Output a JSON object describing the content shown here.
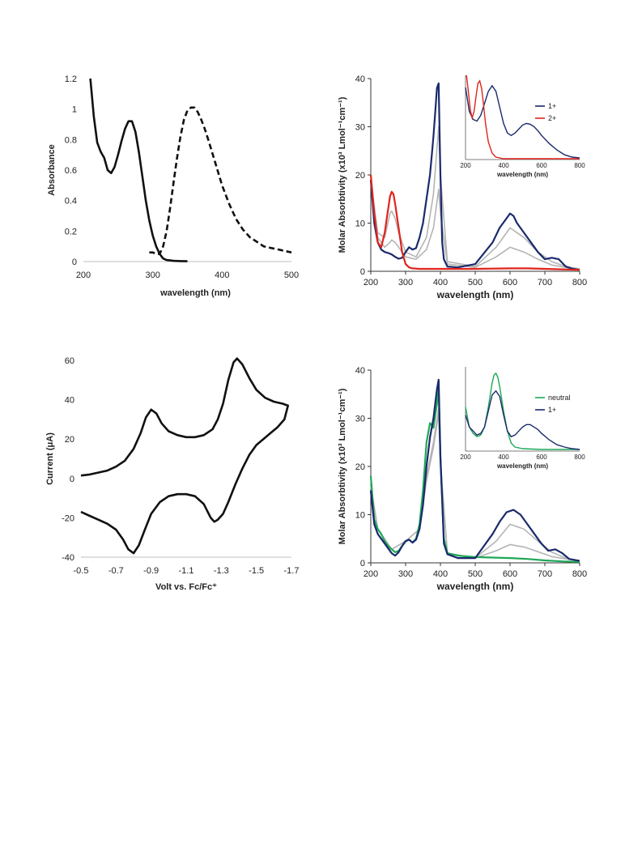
{
  "chart_data": [
    {
      "type": "line",
      "xlabel": "wavelength (nm)",
      "ylabel": "Absorbance",
      "xlim": [
        200,
        500
      ],
      "ylim": [
        0,
        1.2
      ],
      "xticks": [
        "200",
        "300",
        "400",
        "500"
      ],
      "yticks": [
        "0",
        "0.2",
        "0.4",
        "0.6",
        "0.8",
        "1",
        "1.2"
      ],
      "grid": false,
      "series": [
        {
          "style": "solid",
          "color": "#111111",
          "x": [
            210,
            215,
            220,
            225,
            230,
            235,
            240,
            245,
            250,
            255,
            260,
            265,
            270,
            275,
            280,
            285,
            290,
            295,
            300,
            305,
            310,
            315,
            320,
            330,
            340,
            350
          ],
          "y": [
            1.2,
            0.95,
            0.78,
            0.72,
            0.68,
            0.6,
            0.58,
            0.62,
            0.7,
            0.79,
            0.87,
            0.92,
            0.92,
            0.85,
            0.72,
            0.56,
            0.4,
            0.27,
            0.17,
            0.1,
            0.05,
            0.02,
            0.01,
            0.005,
            0.003,
            0.002
          ]
        },
        {
          "style": "dashed",
          "color": "#111111",
          "x": [
            295,
            300,
            305,
            310,
            315,
            320,
            325,
            330,
            335,
            340,
            345,
            350,
            355,
            360,
            365,
            370,
            375,
            380,
            390,
            400,
            410,
            420,
            430,
            440,
            450,
            460,
            470,
            480,
            490,
            500
          ],
          "y": [
            0.06,
            0.06,
            0.05,
            0.05,
            0.1,
            0.2,
            0.35,
            0.52,
            0.68,
            0.82,
            0.93,
            0.99,
            1.01,
            1.01,
            0.98,
            0.93,
            0.87,
            0.8,
            0.65,
            0.5,
            0.38,
            0.28,
            0.21,
            0.16,
            0.13,
            0.1,
            0.09,
            0.08,
            0.07,
            0.06
          ]
        }
      ]
    },
    {
      "type": "line",
      "xlabel": "wavelength (nm)",
      "ylabel": "Molar Absorbtivity (x10³ Lmol⁻¹cm⁻¹)",
      "xlim": [
        200,
        800
      ],
      "ylim": [
        0,
        40
      ],
      "xticks": [
        "200",
        "300",
        "400",
        "500",
        "600",
        "700",
        "800"
      ],
      "yticks": [
        "0",
        "10",
        "20",
        "30",
        "40"
      ],
      "grid": false,
      "series": [
        {
          "name": "1+",
          "color": "#1a2a6c",
          "x": [
            200,
            210,
            220,
            230,
            240,
            250,
            260,
            270,
            280,
            290,
            300,
            310,
            320,
            330,
            340,
            350,
            360,
            370,
            375,
            380,
            385,
            390,
            395,
            400,
            405,
            410,
            420,
            450,
            500,
            550,
            570,
            590,
            600,
            610,
            620,
            640,
            660,
            680,
            700,
            720,
            740,
            760,
            780,
            800
          ],
          "y": [
            19,
            10,
            6,
            4.5,
            4,
            3.8,
            3.5,
            3,
            2.6,
            2.8,
            4,
            5,
            4.5,
            4.8,
            7,
            10,
            15,
            20,
            24,
            28,
            33,
            38,
            39,
            20,
            6,
            2.5,
            1,
            0.8,
            1.5,
            6,
            9,
            11,
            12,
            11.5,
            10,
            8,
            6,
            4,
            2.5,
            2.8,
            2.5,
            1,
            0.5,
            0.3
          ]
        },
        {
          "name": "2+",
          "color": "#e0241c",
          "x": [
            200,
            210,
            220,
            230,
            240,
            250,
            255,
            260,
            265,
            270,
            280,
            290,
            300,
            310,
            320,
            340,
            400,
            500,
            600,
            650,
            700,
            750,
            800
          ],
          "y": [
            20,
            12,
            6,
            5,
            8,
            13,
            15.5,
            16.5,
            16,
            14,
            9,
            4,
            1.5,
            0.8,
            0.6,
            0.5,
            0.5,
            0.5,
            0.6,
            0.6,
            0.5,
            0.4,
            0.3
          ]
        },
        {
          "name": "",
          "color": "#b4b4b4",
          "x": [
            200,
            220,
            240,
            255,
            260,
            270,
            280,
            300,
            330,
            360,
            380,
            395,
            400,
            420,
            500,
            560,
            600,
            640,
            680,
            720,
            760,
            800
          ],
          "y": [
            19,
            8,
            7,
            12,
            12.5,
            11,
            8,
            4,
            3,
            7,
            16,
            30,
            20,
            2,
            1,
            5,
            9,
            7,
            4,
            2,
            1,
            0.5
          ]
        },
        {
          "name": "",
          "color": "#b4b4b4",
          "x": [
            200,
            220,
            240,
            255,
            260,
            270,
            280,
            300,
            330,
            360,
            380,
            395,
            400,
            420,
            500,
            560,
            600,
            640,
            680,
            720,
            760,
            800
          ],
          "y": [
            19,
            7,
            5,
            6,
            6.5,
            6,
            5,
            3,
            2.5,
            4.5,
            9,
            17,
            12,
            1.5,
            0.8,
            3,
            5,
            4,
            2.5,
            1.3,
            0.8,
            0.4
          ]
        }
      ],
      "inset": {
        "xlabel": "wavelength (nm)",
        "xlim": [
          200,
          800
        ],
        "xticks": [
          "200",
          "400",
          "600",
          "800"
        ],
        "legend": [
          "1+",
          "2+"
        ],
        "series": [
          {
            "name": "1+",
            "color": "#1a2a6c",
            "x": [
              200,
              220,
              240,
              260,
              280,
              300,
              320,
              340,
              360,
              380,
              400,
              420,
              440,
              460,
              480,
              500,
              520,
              540,
              560,
              580,
              600,
              640,
              680,
              720,
              760,
              800
            ],
            "y": [
              0.9,
              0.6,
              0.5,
              0.48,
              0.55,
              0.7,
              0.85,
              0.92,
              0.85,
              0.65,
              0.45,
              0.33,
              0.3,
              0.33,
              0.38,
              0.43,
              0.45,
              0.44,
              0.41,
              0.36,
              0.3,
              0.2,
              0.12,
              0.06,
              0.03,
              0.02
            ]
          },
          {
            "name": "2+",
            "color": "#e0241c",
            "x": [
              205,
              215,
              225,
              235,
              245,
              255,
              265,
              275,
              285,
              295,
              305,
              320,
              340,
              360,
              400,
              500,
              600,
              700,
              800
            ],
            "y": [
              1.05,
              0.85,
              0.62,
              0.52,
              0.6,
              0.78,
              0.95,
              0.98,
              0.88,
              0.68,
              0.45,
              0.22,
              0.08,
              0.03,
              0.01,
              0.01,
              0.01,
              0.01,
              0.01
            ]
          }
        ]
      }
    },
    {
      "type": "line",
      "xlabel": "Volt vs. Fc/Fc⁺",
      "ylabel": "Current (μA)",
      "xlim": [
        -0.5,
        -1.7
      ],
      "ylim": [
        -40,
        60
      ],
      "xticks": [
        "-0.5",
        "-0.7",
        "-0.9",
        "-1.1",
        "-1.3",
        "-1.5",
        "-1.7"
      ],
      "yticks": [
        "-40",
        "-20",
        "0",
        "20",
        "40",
        "60"
      ],
      "grid": false,
      "series": [
        {
          "name": "",
          "color": "#111111",
          "x": [
            -0.5,
            -0.55,
            -0.6,
            -0.65,
            -0.7,
            -0.75,
            -0.8,
            -0.84,
            -0.87,
            -0.9,
            -0.93,
            -0.96,
            -1.0,
            -1.05,
            -1.1,
            -1.15,
            -1.2,
            -1.25,
            -1.28,
            -1.31,
            -1.34,
            -1.37,
            -1.39,
            -1.42,
            -1.46,
            -1.5,
            -1.55,
            -1.6,
            -1.65,
            -1.68,
            -1.66,
            -1.62,
            -1.58,
            -1.54,
            -1.5,
            -1.46,
            -1.42,
            -1.38,
            -1.34,
            -1.31,
            -1.28,
            -1.26,
            -1.24,
            -1.2,
            -1.15,
            -1.1,
            -1.05,
            -1.0,
            -0.95,
            -0.9,
            -0.86,
            -0.83,
            -0.8,
            -0.77,
            -0.74,
            -0.7,
            -0.65,
            -0.6,
            -0.55,
            -0.5
          ],
          "y": [
            1.5,
            2,
            3,
            4,
            6,
            9,
            15,
            23,
            31,
            35,
            33,
            28,
            24,
            22,
            21,
            21,
            22,
            25,
            30,
            38,
            50,
            59,
            61,
            58,
            51,
            45,
            41,
            39,
            38,
            37,
            30,
            26,
            23,
            20,
            17,
            12,
            5,
            -3,
            -12,
            -18,
            -21,
            -22,
            -20,
            -13,
            -9,
            -8,
            -8,
            -9,
            -12,
            -18,
            -27,
            -34,
            -38,
            -36,
            -31,
            -26,
            -23,
            -21,
            -19,
            -17
          ]
        }
      ]
    },
    {
      "type": "line",
      "xlabel": "wavelength (nm)",
      "ylabel": "Molar Absorbtivity (x10³ Lmol⁻¹cm⁻¹)",
      "xlim": [
        200,
        800
      ],
      "ylim": [
        0,
        40
      ],
      "xticks": [
        "200",
        "300",
        "400",
        "500",
        "600",
        "700",
        "800"
      ],
      "yticks": [
        "0",
        "10",
        "20",
        "30",
        "40"
      ],
      "grid": false,
      "series": [
        {
          "name": "neutral",
          "color": "#1fa857",
          "x": [
            200,
            210,
            220,
            230,
            240,
            250,
            260,
            270,
            280,
            290,
            300,
            310,
            320,
            330,
            340,
            350,
            360,
            370,
            380,
            390,
            395,
            400,
            410,
            420,
            450,
            500,
            550,
            600,
            650,
            700,
            750,
            800
          ],
          "y": [
            18,
            9,
            7,
            6,
            4.5,
            3.5,
            2.8,
            2.2,
            2.5,
            3.5,
            4.5,
            4.8,
            4.2,
            5,
            8,
            15,
            25,
            29,
            28,
            33,
            36,
            22,
            5,
            2,
            1.5,
            1.2,
            1.1,
            1,
            0.8,
            0.5,
            0.3,
            0.2
          ]
        },
        {
          "name": "1+",
          "color": "#1a2a6c",
          "x": [
            200,
            210,
            220,
            230,
            240,
            250,
            260,
            270,
            280,
            290,
            300,
            310,
            320,
            330,
            340,
            350,
            360,
            370,
            380,
            390,
            395,
            400,
            410,
            420,
            450,
            500,
            550,
            570,
            590,
            610,
            630,
            650,
            670,
            690,
            710,
            730,
            750,
            770,
            800
          ],
          "y": [
            15,
            8,
            6,
            5,
            4,
            3,
            2,
            1.5,
            2.2,
            3.5,
            4.5,
            4.8,
            4.2,
            4.8,
            7,
            12,
            20,
            26,
            30,
            36,
            38,
            22,
            4,
            1.8,
            1,
            1,
            6,
            8.5,
            10.5,
            11,
            10,
            8,
            6,
            4,
            2.5,
            2.8,
            2,
            0.8,
            0.4
          ]
        },
        {
          "name": "",
          "color": "#b4b4b4",
          "x": [
            200,
            220,
            260,
            300,
            340,
            360,
            380,
            395,
            400,
            420,
            500,
            560,
            600,
            640,
            680,
            720,
            760,
            800
          ],
          "y": [
            16,
            7,
            2.8,
            4.5,
            7,
            18,
            25,
            32,
            21,
            2,
            1,
            4.5,
            8,
            7,
            4.5,
            2.2,
            1,
            0.4
          ]
        },
        {
          "name": "",
          "color": "#b4b4b4",
          "x": [
            200,
            220,
            260,
            300,
            340,
            360,
            380,
            395,
            400,
            420,
            500,
            560,
            600,
            640,
            680,
            720,
            760,
            800
          ],
          "y": [
            16,
            7,
            2.8,
            4.5,
            7,
            17,
            24,
            31,
            20,
            2,
            1,
            2.5,
            3.8,
            3.3,
            2.3,
            1.3,
            0.8,
            0.4
          ]
        }
      ],
      "inset": {
        "xlabel": "wavelength (nm)",
        "xlim": [
          200,
          800
        ],
        "xticks": [
          "200",
          "400",
          "600",
          "800"
        ],
        "legend": [
          "neutral",
          "1+"
        ],
        "series": [
          {
            "name": "neutral",
            "color": "#1fa857",
            "x": [
              200,
              220,
              240,
              260,
              280,
              300,
              320,
              340,
              350,
              360,
              370,
              380,
              400,
              420,
              440,
              460,
              500,
              600,
              700,
              800
            ],
            "y": [
              0.55,
              0.3,
              0.22,
              0.18,
              0.2,
              0.3,
              0.55,
              0.85,
              0.95,
              0.97,
              0.92,
              0.8,
              0.5,
              0.25,
              0.1,
              0.05,
              0.03,
              0.02,
              0.02,
              0.02
            ]
          },
          {
            "name": "1+",
            "color": "#1a2a6c",
            "x": [
              200,
              220,
              240,
              260,
              280,
              300,
              320,
              340,
              360,
              380,
              400,
              420,
              440,
              460,
              480,
              500,
              520,
              540,
              560,
              580,
              600,
              640,
              680,
              720,
              760,
              800
            ],
            "y": [
              0.45,
              0.3,
              0.25,
              0.2,
              0.22,
              0.3,
              0.5,
              0.7,
              0.75,
              0.68,
              0.45,
              0.25,
              0.18,
              0.2,
              0.25,
              0.3,
              0.33,
              0.33,
              0.3,
              0.27,
              0.22,
              0.14,
              0.08,
              0.05,
              0.03,
              0.02
            ]
          }
        ]
      }
    }
  ]
}
